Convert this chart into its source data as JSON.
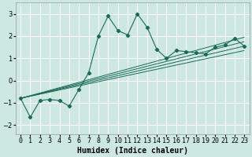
{
  "xlabel": "Humidex (Indice chaleur)",
  "bg_color": "#cce8e0",
  "line_color": "#1a6b5a",
  "grid_color": "#ffffff",
  "x_data": [
    0,
    1,
    2,
    3,
    4,
    5,
    6,
    7,
    8,
    9,
    10,
    11,
    12,
    13,
    14,
    15,
    16,
    17,
    18,
    19,
    20,
    21,
    22,
    23
  ],
  "y_main": [
    -0.8,
    -1.65,
    -0.9,
    -0.85,
    -0.9,
    -1.15,
    -0.4,
    0.35,
    2.0,
    2.9,
    2.25,
    2.05,
    3.0,
    2.4,
    1.4,
    1.0,
    1.35,
    1.3,
    1.25,
    1.2,
    1.5,
    1.6,
    1.9,
    1.55
  ],
  "trend_lines": [
    {
      "x0": 0,
      "y0": -0.8,
      "x1": 23,
      "y1": 1.95
    },
    {
      "x0": 0,
      "y0": -0.8,
      "x1": 23,
      "y1": 1.75
    },
    {
      "x0": 0,
      "y0": -0.8,
      "x1": 23,
      "y1": 1.55
    },
    {
      "x0": 0,
      "y0": -0.8,
      "x1": 23,
      "y1": 1.35
    }
  ],
  "xlim": [
    -0.5,
    23.5
  ],
  "ylim": [
    -2.4,
    3.5
  ],
  "yticks": [
    -2,
    -1,
    0,
    1,
    2,
    3
  ],
  "xticks": [
    0,
    1,
    2,
    3,
    4,
    5,
    6,
    7,
    8,
    9,
    10,
    11,
    12,
    13,
    14,
    15,
    16,
    17,
    18,
    19,
    20,
    21,
    22,
    23
  ],
  "tick_fontsize": 6,
  "xlabel_fontsize": 7
}
